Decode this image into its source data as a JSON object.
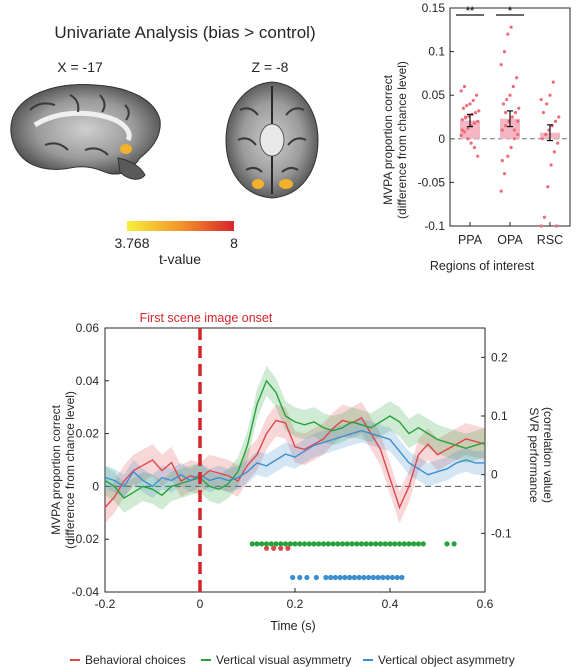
{
  "colors": {
    "hot_low": "#f7ee3a",
    "hot_high": "#d8252b",
    "bar_fill": "#f4b6c2",
    "dot": "#ef6b78",
    "red": "#e0474c",
    "green": "#27a23a",
    "blue": "#3c8fcf",
    "onset": "#d8252b"
  },
  "brain_panel": {
    "title": "Univariate Analysis (bias > control)",
    "slice_left_label": "X = -17",
    "slice_right_label": "Z = -8",
    "colorbar_min": "3.768",
    "colorbar_max": "8",
    "colorbar_label": "t-value"
  },
  "chart_data": [
    {
      "type": "bar",
      "categories": [
        "PPA",
        "OPA",
        "RSC"
      ],
      "values": [
        0.021,
        0.023,
        0.007
      ],
      "errors": [
        0.007,
        0.009,
        0.009
      ],
      "significance": [
        "**",
        "*",
        ""
      ],
      "xlabel": "Regions of interest",
      "ylabel_line1": "MVPA proportion correct",
      "ylabel_line2": "(difference from chance level)",
      "ylim": [
        -0.1,
        0.15
      ],
      "yticks": [
        "-0.1",
        "-0.05",
        "0",
        "0.05",
        "0.1",
        "0.15"
      ],
      "ytick_values": [
        -0.1,
        -0.05,
        0,
        0.05,
        0.1,
        0.15
      ],
      "points": [
        [
          0.004,
          0.008,
          0.012,
          0.015,
          0.018,
          0.02,
          0.022,
          0.024,
          0.026,
          0.028,
          0.03,
          0.032,
          0.035,
          0.038,
          0.04,
          0.044,
          0.05,
          0.055,
          0.06,
          0.0,
          -0.005,
          -0.01,
          -0.02,
          0.01,
          0.025
        ],
        [
          -0.06,
          -0.04,
          -0.02,
          -0.01,
          0.0,
          0.005,
          0.01,
          0.015,
          0.02,
          0.025,
          0.03,
          0.035,
          0.04,
          0.045,
          0.05,
          0.06,
          0.07,
          0.085,
          0.1,
          0.12,
          0.128,
          0.01,
          0.02,
          -0.025,
          0.03
        ],
        [
          -0.1,
          -0.09,
          -0.055,
          -0.03,
          -0.015,
          -0.005,
          0.0,
          0.005,
          0.01,
          0.015,
          0.02,
          0.025,
          0.03,
          0.04,
          0.05,
          0.065,
          -0.1,
          0.045
        ]
      ]
    },
    {
      "type": "line",
      "title": "First scene image onset",
      "xlabel": "Time (s)",
      "ylabel_line1": "MVPA proportion correct",
      "ylabel_line2": "(difference from chance level)",
      "y2label_line1": "SVR performance",
      "y2label_line2": "(correlation value)",
      "xlim": [
        -0.2,
        0.6
      ],
      "ylim": [
        -0.04,
        0.06
      ],
      "y2lim": [
        -0.2,
        0.25
      ],
      "xticks": [
        "-0.2",
        "0",
        "0.2",
        "0.4",
        "0.6"
      ],
      "xtick_values": [
        -0.2,
        0,
        0.2,
        0.4,
        0.6
      ],
      "yticks": [
        "-0.04",
        "-0.02",
        "0",
        "0.02",
        "0.04",
        "0.06"
      ],
      "ytick_values": [
        -0.04,
        -0.02,
        0,
        0.02,
        0.04,
        0.06
      ],
      "y2ticks": [
        "-0.1",
        "0",
        "0.1",
        "0.2"
      ],
      "y2tick_values": [
        -0.1,
        0,
        0.1,
        0.2
      ],
      "onset_x": 0,
      "series": [
        {
          "name": "Behavioral choices",
          "axis": "left",
          "x": [
            -0.2,
            -0.18,
            -0.16,
            -0.14,
            -0.12,
            -0.1,
            -0.08,
            -0.06,
            -0.04,
            -0.02,
            0.0,
            0.02,
            0.04,
            0.06,
            0.08,
            0.1,
            0.12,
            0.14,
            0.16,
            0.18,
            0.2,
            0.22,
            0.24,
            0.26,
            0.28,
            0.3,
            0.32,
            0.34,
            0.36,
            0.38,
            0.4,
            0.42,
            0.44,
            0.46,
            0.48,
            0.5,
            0.52,
            0.54,
            0.56,
            0.58,
            0.6
          ],
          "y": [
            -0.008,
            -0.004,
            0.002,
            0.006,
            0.008,
            0.01,
            0.006,
            0.009,
            0.002,
            0.004,
            0.003,
            0.006,
            0.005,
            0.004,
            0.002,
            0.008,
            0.012,
            0.02,
            0.025,
            0.024,
            0.015,
            0.014,
            0.016,
            0.018,
            0.022,
            0.025,
            0.024,
            0.026,
            0.02,
            0.014,
            0.003,
            -0.008,
            0.0,
            0.012,
            0.016,
            0.012,
            0.014,
            0.016,
            0.018,
            0.017,
            0.016
          ],
          "ci": 0.006
        },
        {
          "name": "Vertical visual asymmetry",
          "axis": "right",
          "x": [
            -0.2,
            -0.18,
            -0.16,
            -0.14,
            -0.12,
            -0.1,
            -0.08,
            -0.06,
            -0.04,
            -0.02,
            0.0,
            0.02,
            0.04,
            0.06,
            0.08,
            0.1,
            0.12,
            0.14,
            0.16,
            0.18,
            0.2,
            0.22,
            0.24,
            0.26,
            0.28,
            0.3,
            0.32,
            0.34,
            0.36,
            0.38,
            0.4,
            0.42,
            0.44,
            0.46,
            0.48,
            0.5,
            0.52,
            0.54,
            0.56,
            0.58,
            0.6
          ],
          "y": [
            -0.01,
            -0.02,
            -0.04,
            -0.03,
            -0.02,
            -0.025,
            -0.035,
            -0.02,
            -0.015,
            -0.01,
            -0.005,
            -0.02,
            -0.025,
            -0.015,
            0.005,
            0.05,
            0.12,
            0.16,
            0.14,
            0.1,
            0.09,
            0.085,
            0.09,
            0.08,
            0.075,
            0.08,
            0.09,
            0.085,
            0.08,
            0.09,
            0.1,
            0.09,
            0.07,
            0.08,
            0.07,
            0.06,
            0.055,
            0.05,
            0.045,
            0.05,
            0.055
          ],
          "ci": 0.025
        },
        {
          "name": "Vertical object asymmetry",
          "axis": "right",
          "x": [
            -0.2,
            -0.18,
            -0.16,
            -0.14,
            -0.12,
            -0.1,
            -0.08,
            -0.06,
            -0.04,
            -0.02,
            0.0,
            0.02,
            0.04,
            0.06,
            0.08,
            0.1,
            0.12,
            0.14,
            0.16,
            0.18,
            0.2,
            0.22,
            0.24,
            0.26,
            0.28,
            0.3,
            0.32,
            0.34,
            0.36,
            0.38,
            0.4,
            0.42,
            0.44,
            0.46,
            0.48,
            0.5,
            0.52,
            0.54,
            0.56,
            0.58,
            0.6
          ],
          "y": [
            -0.005,
            -0.01,
            -0.02,
            0.005,
            -0.01,
            -0.02,
            -0.005,
            -0.01,
            0.0,
            -0.01,
            0.0,
            -0.01,
            -0.005,
            -0.01,
            -0.005,
            0.005,
            0.02,
            0.015,
            0.025,
            0.035,
            0.03,
            0.04,
            0.05,
            0.055,
            0.06,
            0.065,
            0.07,
            0.075,
            0.07,
            0.065,
            0.06,
            0.04,
            0.02,
            0.01,
            0.0,
            0.005,
            0.01,
            0.02,
            0.025,
            0.02,
            0.02
          ],
          "ci": 0.02
        }
      ],
      "significance_dots": [
        {
          "series": "Behavioral choices",
          "y": -0.1255,
          "x": [
            0.14,
            0.155,
            0.17,
            0.185
          ]
        },
        {
          "series": "Vertical visual asymmetry",
          "y": -0.118,
          "x_start": 0.11,
          "x_end": 0.47,
          "step": 0.01,
          "extra_x": [
            0.52,
            0.535
          ]
        },
        {
          "series": "Vertical object asymmetry",
          "y": -0.0345,
          "x": [
            0.195,
            0.21,
            0.225,
            0.245
          ],
          "x_start": 0.265,
          "x_end": 0.43,
          "step": 0.01
        }
      ]
    }
  ],
  "legend": [
    {
      "label": "Behavioral choices",
      "color": "#e0474c"
    },
    {
      "label": "Vertical visual asymmetry",
      "color": "#27a23a"
    },
    {
      "label": "Vertical object asymmetry",
      "color": "#3c8fcf"
    }
  ]
}
